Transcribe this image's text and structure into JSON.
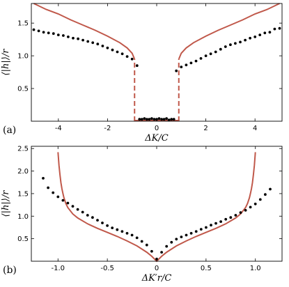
{
  "colors": {
    "theory": "#c0584a",
    "data": "#000000",
    "frame": "#000000"
  },
  "chart_data": [
    {
      "type": "scatter",
      "panel_label": "(a)",
      "xlabel": "ΔK/C",
      "ylabel": "⟨|h|⟩/r",
      "xlim": [
        -5.1,
        5.1
      ],
      "ylim": [
        0,
        1.8
      ],
      "x_ticks": [
        -4,
        -2,
        0,
        2,
        4
      ],
      "x_tick_labels": [
        "-4",
        "-2",
        "0",
        "2",
        "4"
      ],
      "y_ticks": [
        0.5,
        1.0,
        1.5
      ],
      "y_tick_labels": [
        "0.5",
        "1.0",
        "1.5"
      ],
      "grid": false,
      "theory_curve": {
        "style": "solid+dashed",
        "branches": [
          {
            "x": [
              -5.0,
              -4.5,
              -4.0,
              -3.5,
              -3.0,
              -2.5,
              -2.0,
              -1.5,
              -1.2,
              -1.0,
              -0.9
            ],
            "y": [
              1.8,
              1.71,
              1.64,
              1.55,
              1.47,
              1.39,
              1.3,
              1.2,
              1.12,
              1.04,
              0.95
            ]
          },
          {
            "x": [
              0.9,
              1.0,
              1.2,
              1.5,
              2.0,
              2.5,
              3.0,
              3.5,
              4.0,
              4.5,
              5.0
            ],
            "y": [
              0.95,
              1.04,
              1.12,
              1.2,
              1.3,
              1.39,
              1.47,
              1.55,
              1.64,
              1.71,
              1.8
            ]
          }
        ],
        "jump_x": [
          -0.9,
          0.9
        ],
        "jump_y": [
          0.0,
          0.95
        ],
        "inner_segment": {
          "x": [
            -0.9,
            0.9
          ],
          "y": [
            0.0,
            0.0
          ]
        }
      },
      "points": {
        "x": [
          -5.0,
          -4.8,
          -4.6,
          -4.4,
          -4.2,
          -4.0,
          -3.8,
          -3.6,
          -3.4,
          -3.2,
          -3.0,
          -2.8,
          -2.6,
          -2.4,
          -2.2,
          -2.0,
          -1.8,
          -1.6,
          -1.4,
          -1.2,
          -1.0,
          -0.8,
          -0.7,
          -0.6,
          -0.5,
          -0.4,
          -0.3,
          -0.2,
          -0.1,
          0.0,
          0.1,
          0.2,
          0.3,
          0.4,
          0.5,
          0.6,
          0.7,
          0.8,
          1.0,
          1.2,
          1.4,
          1.6,
          1.8,
          2.0,
          2.2,
          2.4,
          2.6,
          2.8,
          3.0,
          3.2,
          3.4,
          3.6,
          3.8,
          4.0,
          4.2,
          4.4,
          4.6,
          4.8,
          5.0
        ],
        "y": [
          1.4,
          1.38,
          1.36,
          1.35,
          1.34,
          1.32,
          1.31,
          1.29,
          1.27,
          1.26,
          1.24,
          1.22,
          1.2,
          1.18,
          1.15,
          1.12,
          1.09,
          1.06,
          1.03,
          0.99,
          0.95,
          0.85,
          0.03,
          0.03,
          0.04,
          0.03,
          0.03,
          0.04,
          0.03,
          0.03,
          0.04,
          0.03,
          0.03,
          0.04,
          0.02,
          0.03,
          0.03,
          0.77,
          0.83,
          0.86,
          0.89,
          0.92,
          0.96,
          1.0,
          1.03,
          1.06,
          1.1,
          1.14,
          1.17,
          1.19,
          1.21,
          1.24,
          1.27,
          1.29,
          1.32,
          1.35,
          1.36,
          1.41,
          1.42
        ]
      }
    },
    {
      "type": "scatter",
      "panel_label": "(b)",
      "xlabel": "ΔK′r/C",
      "ylabel": "⟨|h|⟩/r",
      "xlim": [
        -1.27,
        1.27
      ],
      "ylim": [
        0,
        2.55
      ],
      "x_ticks": [
        -1.0,
        -0.5,
        0,
        0.5,
        1.0
      ],
      "x_tick_labels": [
        "-1.0",
        "-0.5",
        "0",
        "0.5",
        "1.0"
      ],
      "y_ticks": [
        0.5,
        1.0,
        1.5,
        2.0,
        2.5
      ],
      "y_tick_labels": [
        "0.5",
        "1.0",
        "1.5",
        "2.0",
        "2.5"
      ],
      "grid": false,
      "theory_curve": {
        "style": "solid",
        "x": [
          -1.0,
          -0.99,
          -0.98,
          -0.97,
          -0.96,
          -0.95,
          -0.94,
          -0.92,
          -0.9,
          -0.85,
          -0.8,
          -0.7,
          -0.6,
          -0.5,
          -0.4,
          -0.3,
          -0.2,
          -0.1,
          -0.05,
          0.0,
          0.05,
          0.1,
          0.2,
          0.3,
          0.4,
          0.5,
          0.6,
          0.7,
          0.8,
          0.85,
          0.9,
          0.92,
          0.94,
          0.95,
          0.96,
          0.97,
          0.98,
          0.99,
          1.0
        ],
        "y": [
          2.42,
          2.13,
          1.92,
          1.74,
          1.61,
          1.5,
          1.41,
          1.28,
          1.19,
          1.05,
          0.96,
          0.83,
          0.73,
          0.64,
          0.55,
          0.45,
          0.34,
          0.2,
          0.11,
          0.0,
          0.11,
          0.2,
          0.34,
          0.45,
          0.55,
          0.64,
          0.73,
          0.83,
          0.96,
          1.05,
          1.19,
          1.28,
          1.41,
          1.5,
          1.61,
          1.74,
          1.92,
          2.13,
          2.42
        ]
      },
      "points": {
        "x": [
          -1.15,
          -1.1,
          -1.05,
          -1.0,
          -0.95,
          -0.9,
          -0.85,
          -0.8,
          -0.75,
          -0.7,
          -0.65,
          -0.6,
          -0.55,
          -0.5,
          -0.45,
          -0.4,
          -0.35,
          -0.3,
          -0.25,
          -0.2,
          -0.15,
          -0.1,
          -0.05,
          0.0,
          0.05,
          0.1,
          0.15,
          0.2,
          0.25,
          0.3,
          0.35,
          0.4,
          0.45,
          0.5,
          0.55,
          0.6,
          0.65,
          0.7,
          0.75,
          0.8,
          0.85,
          0.9,
          0.95,
          1.0,
          1.05,
          1.1,
          1.15
        ],
        "y": [
          1.84,
          1.63,
          1.52,
          1.43,
          1.35,
          1.29,
          1.22,
          1.15,
          1.09,
          1.02,
          0.97,
          0.91,
          0.85,
          0.79,
          0.74,
          0.7,
          0.66,
          0.62,
          0.58,
          0.52,
          0.44,
          0.36,
          0.22,
          0.05,
          0.2,
          0.33,
          0.42,
          0.49,
          0.54,
          0.58,
          0.62,
          0.66,
          0.71,
          0.75,
          0.8,
          0.84,
          0.88,
          0.93,
          0.97,
          1.02,
          1.08,
          1.13,
          1.2,
          1.27,
          1.37,
          1.48,
          1.6
        ]
      }
    }
  ]
}
